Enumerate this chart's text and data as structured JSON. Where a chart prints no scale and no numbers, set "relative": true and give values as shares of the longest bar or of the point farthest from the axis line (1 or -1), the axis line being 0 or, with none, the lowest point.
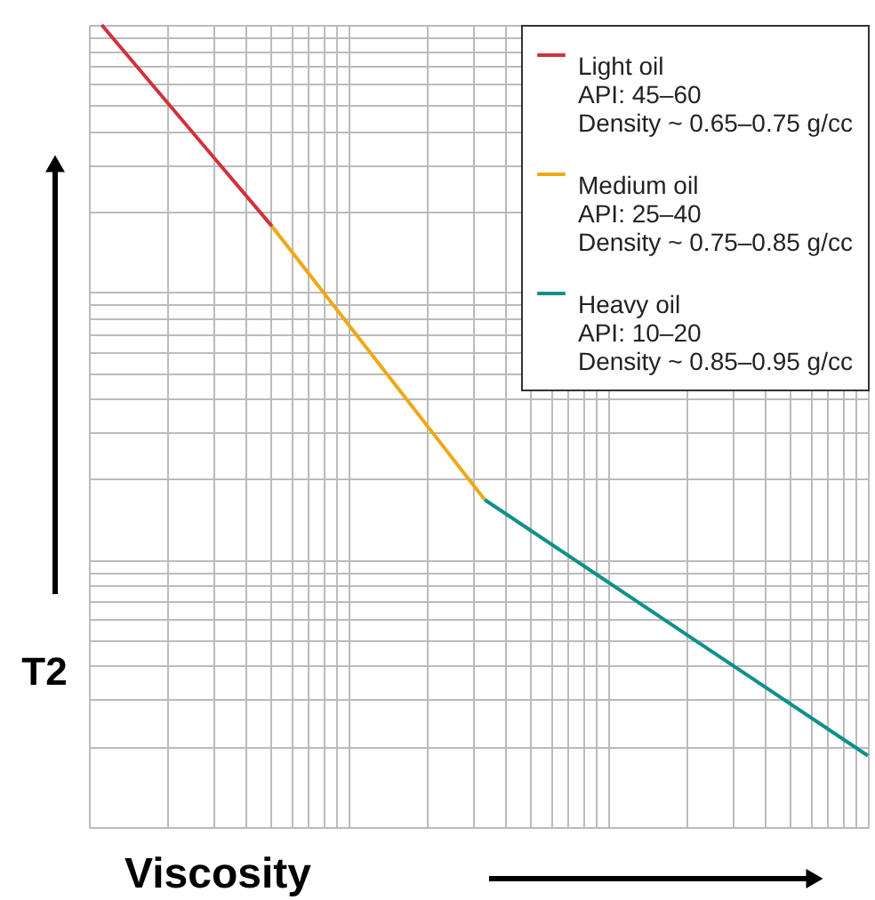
{
  "chart_data": {
    "type": "line",
    "relative": true,
    "xlabel": "Viscosity",
    "ylabel": "T2",
    "grid": true,
    "legend": "top right",
    "tick_labels": false,
    "line_style": "solid",
    "marker": "none",
    "categories": [
      null,
      null,
      null,
      null,
      null,
      null,
      null,
      null,
      null,
      null,
      null,
      null,
      null,
      null,
      null,
      null,
      null,
      null,
      null
    ],
    "series": [
      {
        "name": "Light oil\nAPI: 45–60\nDensity ~ 0.65–0.75 g/cc",
        "color": "#d0323c",
        "values": [
          1.0,
          null,
          null,
          null,
          0.749,
          null,
          null,
          null,
          null,
          null,
          null,
          null,
          null,
          null,
          null,
          null,
          null,
          null,
          null
        ]
      },
      {
        "name": "Medium oil\nAPI: 25–40\nDensity ~ 0.75–0.85 g/cc",
        "color": "#f0a818",
        "values": [
          null,
          null,
          null,
          null,
          0.749,
          null,
          null,
          null,
          null,
          0.408,
          null,
          null,
          null,
          null,
          null,
          null,
          null,
          null,
          null
        ]
      },
      {
        "name": "Heavy oil\nAPI: 10–20\nDensity ~ 0.85–0.95 g/cc",
        "color": "#10908a",
        "values": [
          null,
          null,
          null,
          null,
          null,
          null,
          null,
          null,
          null,
          0.408,
          null,
          null,
          null,
          null,
          null,
          null,
          null,
          null,
          0.089
        ]
      }
    ]
  }
}
